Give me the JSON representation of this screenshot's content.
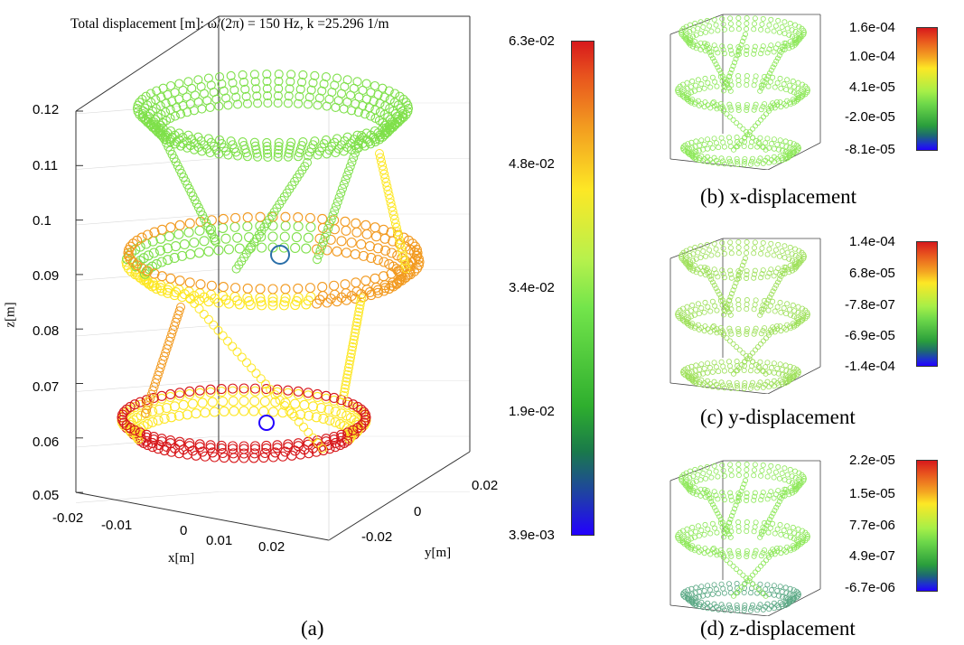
{
  "main_plot": {
    "title": "Total displacement [m]: ω/(2π) = 150 Hz, k =25.296 1/m",
    "z_label": "z[m]",
    "x_label": "x[m]",
    "y_label": "y[m]",
    "z_ticks": [
      "0.12",
      "0.11",
      "0.1",
      "0.09",
      "0.08",
      "0.07",
      "0.06",
      "0.05"
    ],
    "x_ticks": [
      "-0.02",
      "-0.01",
      "0",
      "0.01",
      "0.02"
    ],
    "y_ticks": [
      "-0.02",
      "0",
      "0.02"
    ],
    "caption": "(a)"
  },
  "colorbars": {
    "main": [
      "6.3e-02",
      "4.8e-02",
      "3.4e-02",
      "1.9e-02",
      "3.9e-03"
    ],
    "b": [
      "1.6e-04",
      "1.0e-04",
      "4.1e-05",
      "-2.0e-05",
      "-8.1e-05"
    ],
    "c": [
      "1.4e-04",
      "6.8e-05",
      "-7.8e-07",
      "-6.9e-05",
      "-1.4e-04"
    ],
    "d": [
      "2.2e-05",
      "1.5e-05",
      "7.7e-06",
      "4.9e-07",
      "-6.7e-06"
    ]
  },
  "captions": {
    "b": "(b) x-displacement",
    "c": "(c) y-displacement",
    "d": "(d) z-displacement"
  },
  "colors": {
    "red": "#d7191c",
    "orange": "#f29a20",
    "yellow": "#fde725",
    "green": "#7fe04a",
    "blue": "#2200ff",
    "grey": "#b0b0b0"
  },
  "chart_data": [
    {
      "type": "scatter",
      "title": "Total displacement [m]: ω/(2π) = 150 Hz, k =25.296 1/m",
      "xlabel": "x[m]",
      "ylabel": "y[m]",
      "zlabel": "z[m]",
      "xlim": [
        -0.025,
        0.025
      ],
      "ylim": [
        -0.025,
        0.025
      ],
      "zlim": [
        0.05,
        0.12
      ],
      "colorbar_ticks": [
        0.063,
        0.048,
        0.034,
        0.019,
        0.0039
      ],
      "colorbar_range": [
        0.0039,
        0.063
      ],
      "grid": true
    },
    {
      "type": "scatter",
      "colorbar_ticks": [
        0.00016,
        0.0001,
        4.1e-05,
        -2e-05,
        -8.1e-05
      ],
      "colorbar_range": [
        -8.1e-05,
        0.00016
      ]
    },
    {
      "type": "scatter",
      "colorbar_ticks": [
        0.00014,
        6.8e-05,
        -7.8e-07,
        -6.9e-05,
        -0.00014
      ],
      "colorbar_range": [
        -0.00014,
        0.00014
      ]
    },
    {
      "type": "scatter",
      "colorbar_ticks": [
        2.2e-05,
        1.5e-05,
        7.7e-06,
        4.9e-07,
        -6.7e-06
      ],
      "colorbar_range": [
        -6.7e-06,
        2.2e-05
      ]
    }
  ]
}
